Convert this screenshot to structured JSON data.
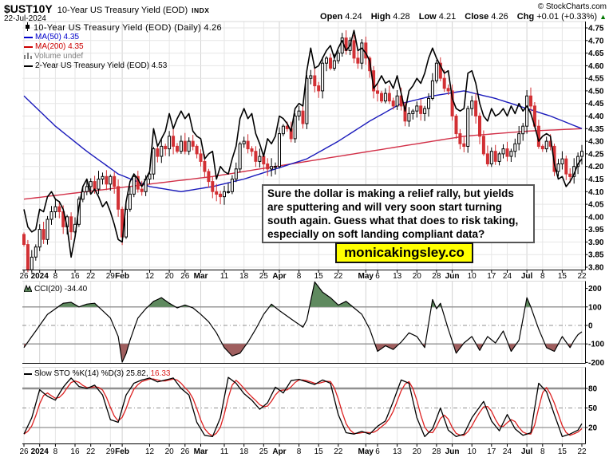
{
  "header": {
    "symbol": "$UST10Y",
    "name": "10-Year US Treasury Yield (EOD)",
    "exchange": "INDX",
    "date": "22-Jul-2024",
    "copyright": "© StockCharts.com",
    "quote": {
      "open_label": "Open",
      "open": "4.24",
      "high_label": "High",
      "high": "4.28",
      "low_label": "Low",
      "low": "4.21",
      "close_label": "Close",
      "close": "4.26",
      "chg_label": "Chg",
      "chg": "+0.01 (+0.33%)",
      "up_arrow": "▲"
    }
  },
  "main_panel": {
    "legend": [
      {
        "icon": "candlestick-icon",
        "label": "10-Year US Treasury Yield (EOD) (Daily) 4.26",
        "color": "#000000"
      },
      {
        "icon": "line-icon",
        "label": "MA(50) 4.35",
        "color": "#0000cc"
      },
      {
        "icon": "line-icon",
        "label": "MA(200) 4.35",
        "color": "#cc0000"
      },
      {
        "icon": "volume-icon",
        "label": "Volume undef",
        "color": "#808080"
      },
      {
        "icon": "line-icon",
        "label": "2-Year US Treasury Yield (EOD) 4.53",
        "color": "#000000"
      }
    ]
  },
  "cci_panel": {
    "legend": "CCI(20) -34.40"
  },
  "sto_panel": {
    "legend_prefix": "Slow STO %K(14) %D(3) 25.82,",
    "legend_value": "16.33"
  },
  "annotation": {
    "text": "Sure the dollar is making a relief rally, but yields are sputtering and will very soon start turning south again. Guess what that does to risk taking, especially on soft landing compliant data?"
  },
  "watermark": {
    "text": "monicakingsley.co",
    "bg": "#ffff00"
  },
  "colors": {
    "candle_down": "#d23034",
    "candle_up_fill": "#ffffff",
    "candle_up_stroke": "#000000",
    "ma50": "#1a1abb",
    "ma200": "#d23048",
    "overlay_line": "#000000",
    "cci_fill_pos": "#5f8a5f",
    "cci_fill_neg": "#a05f5f",
    "sto_k": "#000000",
    "sto_d": "#dd2222",
    "grid": "#e6e6e6",
    "grid_month": "#d2d2d2",
    "threshold": "#909090",
    "axis": "#000000",
    "chg_up": "#007700"
  },
  "x_axis": {
    "ticks": [
      {
        "label": "26",
        "idx": 0,
        "bold": false
      },
      {
        "label": "2024",
        "idx": 4,
        "bold": true
      },
      {
        "label": "8",
        "idx": 8,
        "bold": false
      },
      {
        "label": "16",
        "idx": 13,
        "bold": false
      },
      {
        "label": "22",
        "idx": 17,
        "bold": false
      },
      {
        "label": "29",
        "idx": 22,
        "bold": false
      },
      {
        "label": "Feb",
        "idx": 25,
        "bold": true
      },
      {
        "label": "12",
        "idx": 32,
        "bold": false
      },
      {
        "label": "20",
        "idx": 37,
        "bold": false
      },
      {
        "label": "26",
        "idx": 41,
        "bold": false
      },
      {
        "label": "Mar",
        "idx": 45,
        "bold": true
      },
      {
        "label": "11",
        "idx": 51,
        "bold": false
      },
      {
        "label": "18",
        "idx": 56,
        "bold": false
      },
      {
        "label": "25",
        "idx": 61,
        "bold": false
      },
      {
        "label": "Apr",
        "idx": 65,
        "bold": true
      },
      {
        "label": "8",
        "idx": 70,
        "bold": false
      },
      {
        "label": "15",
        "idx": 75,
        "bold": false
      },
      {
        "label": "22",
        "idx": 80,
        "bold": false
      },
      {
        "label": "May",
        "idx": 87,
        "bold": true
      },
      {
        "label": "6",
        "idx": 90,
        "bold": false
      },
      {
        "label": "13",
        "idx": 95,
        "bold": false
      },
      {
        "label": "20",
        "idx": 100,
        "bold": false
      },
      {
        "label": "28",
        "idx": 105,
        "bold": false
      },
      {
        "label": "Jun",
        "idx": 109,
        "bold": true
      },
      {
        "label": "10",
        "idx": 114,
        "bold": false
      },
      {
        "label": "17",
        "idx": 119,
        "bold": false
      },
      {
        "label": "24",
        "idx": 123,
        "bold": false
      },
      {
        "label": "Jul",
        "idx": 128,
        "bold": true
      },
      {
        "label": "8",
        "idx": 132,
        "bold": false
      },
      {
        "label": "15",
        "idx": 137,
        "bold": false
      },
      {
        "label": "22",
        "idx": 142,
        "bold": false
      }
    ]
  },
  "chart_data": [
    {
      "type": "candlestick",
      "title": "10-Year US Treasury Yield (EOD) (Daily)",
      "last": 4.26,
      "open": 4.24,
      "high": 4.28,
      "low": 4.21,
      "ylim": [
        3.8,
        4.75
      ],
      "y_tick_step": 0.05,
      "x_range": "26-Dec-2023 to 22-Jul-2024",
      "closes": [
        3.89,
        3.79,
        3.84,
        3.88,
        3.95,
        3.91,
        3.99,
        4.02,
        4.04,
        4.02,
        3.96,
        4.0,
        3.94,
        3.97,
        4.07,
        4.1,
        4.12,
        4.14,
        4.11,
        4.15,
        4.16,
        4.13,
        4.16,
        4.12,
        4.03,
        3.92,
        4.03,
        4.09,
        4.16,
        4.11,
        4.1,
        4.15,
        4.17,
        4.27,
        4.24,
        4.28,
        4.27,
        4.32,
        4.28,
        4.26,
        4.3,
        4.26,
        4.3,
        4.28,
        4.25,
        4.22,
        4.18,
        4.14,
        4.1,
        4.09,
        4.08,
        4.1,
        4.1,
        4.15,
        4.19,
        4.29,
        4.3,
        4.27,
        4.26,
        4.22,
        4.24,
        4.21,
        4.19,
        4.2,
        4.2,
        4.33,
        4.36,
        4.35,
        4.31,
        4.4,
        4.42,
        4.37,
        4.55,
        4.56,
        4.52,
        4.5,
        4.61,
        4.63,
        4.59,
        4.62,
        4.65,
        4.71,
        4.66,
        4.7,
        4.63,
        4.61,
        4.69,
        4.63,
        4.58,
        4.5,
        4.49,
        4.46,
        4.49,
        4.46,
        4.44,
        4.48,
        4.44,
        4.38,
        4.41,
        4.42,
        4.44,
        4.41,
        4.43,
        4.47,
        4.54,
        4.61,
        4.55,
        4.51,
        4.5,
        4.4,
        4.33,
        4.29,
        4.28,
        4.43,
        4.46,
        4.4,
        4.32,
        4.25,
        4.21,
        4.26,
        4.22,
        4.25,
        4.27,
        4.24,
        4.26,
        4.29,
        4.33,
        4.36,
        4.48,
        4.44,
        4.36,
        4.28,
        4.27,
        4.3,
        4.28,
        4.18,
        4.21,
        4.23,
        4.17,
        4.16,
        4.2,
        4.24,
        4.26
      ],
      "overlays": [
        {
          "name": "MA(50)",
          "last": 4.35,
          "anchors": [
            [
              0,
              4.48
            ],
            [
              8,
              4.36
            ],
            [
              16,
              4.26
            ],
            [
              24,
              4.17
            ],
            [
              32,
              4.12
            ],
            [
              40,
              4.1
            ],
            [
              48,
              4.12
            ],
            [
              56,
              4.15
            ],
            [
              64,
              4.19
            ],
            [
              72,
              4.23
            ],
            [
              80,
              4.3
            ],
            [
              88,
              4.38
            ],
            [
              96,
              4.45
            ],
            [
              104,
              4.48
            ],
            [
              112,
              4.5
            ],
            [
              120,
              4.47
            ],
            [
              128,
              4.43
            ],
            [
              134,
              4.4
            ],
            [
              142,
              4.35
            ]
          ]
        },
        {
          "name": "MA(200)",
          "last": 4.35,
          "anchors": [
            [
              0,
              4.07
            ],
            [
              16,
              4.1
            ],
            [
              32,
              4.13
            ],
            [
              48,
              4.16
            ],
            [
              64,
              4.2
            ],
            [
              80,
              4.24
            ],
            [
              96,
              4.28
            ],
            [
              112,
              4.32
            ],
            [
              128,
              4.34
            ],
            [
              142,
              4.35
            ]
          ]
        },
        {
          "name": "2-Year US Treasury Yield (EOD)",
          "last": 4.53,
          "own_scale": [
            4.1,
            5.05
          ],
          "values": [
            4.33,
            4.26,
            4.24,
            4.25,
            4.33,
            4.32,
            4.38,
            4.4,
            4.37,
            4.36,
            4.33,
            4.26,
            4.14,
            4.22,
            4.34,
            4.42,
            4.45,
            4.39,
            4.41,
            4.38,
            4.34,
            4.36,
            4.32,
            4.27,
            4.21,
            4.2,
            4.36,
            4.44,
            4.47,
            4.45,
            4.42,
            4.45,
            4.48,
            4.65,
            4.58,
            4.61,
            4.64,
            4.71,
            4.65,
            4.69,
            4.72,
            4.69,
            4.71,
            4.64,
            4.62,
            4.61,
            4.53,
            4.55,
            4.56,
            4.45,
            4.5,
            4.48,
            4.47,
            4.53,
            4.58,
            4.69,
            4.73,
            4.69,
            4.71,
            4.63,
            4.59,
            4.54,
            4.61,
            4.59,
            4.62,
            4.7,
            4.69,
            4.67,
            4.64,
            4.73,
            4.75,
            4.74,
            4.88,
            4.97,
            4.89,
            4.9,
            4.93,
            4.96,
            4.98,
            4.93,
            4.97,
            5.0,
            4.96,
            4.98,
            5.04,
            4.96,
            4.97,
            4.95,
            4.92,
            4.81,
            4.83,
            4.86,
            4.83,
            4.84,
            4.81,
            4.86,
            4.79,
            4.72,
            4.8,
            4.82,
            4.85,
            4.83,
            4.87,
            4.93,
            4.97,
            4.93,
            4.9,
            4.87,
            4.88,
            4.77,
            4.73,
            4.72,
            4.73,
            4.87,
            4.88,
            4.83,
            4.75,
            4.7,
            4.68,
            4.73,
            4.7,
            4.71,
            4.73,
            4.7,
            4.74,
            4.71,
            4.75,
            4.72,
            4.74,
            4.71,
            4.66,
            4.6,
            4.62,
            4.63,
            4.62,
            4.51,
            4.45,
            4.46,
            4.42,
            4.44,
            4.47,
            4.51,
            4.53
          ]
        }
      ]
    },
    {
      "type": "line",
      "name": "CCI(20)",
      "last": -34.4,
      "ylim": [
        -245,
        245
      ],
      "y_ticks": [
        200,
        100,
        0,
        -100,
        -200
      ],
      "thresholds": [
        100,
        -100
      ],
      "fill_above": 100,
      "fill_below": -100,
      "anchors": [
        [
          0,
          -120
        ],
        [
          2,
          -60
        ],
        [
          4,
          0
        ],
        [
          6,
          60
        ],
        [
          8,
          90
        ],
        [
          10,
          120
        ],
        [
          12,
          125
        ],
        [
          14,
          100
        ],
        [
          16,
          115
        ],
        [
          18,
          120
        ],
        [
          20,
          80
        ],
        [
          22,
          40
        ],
        [
          24,
          -60
        ],
        [
          25,
          -225
        ],
        [
          27,
          -80
        ],
        [
          29,
          40
        ],
        [
          31,
          90
        ],
        [
          33,
          130
        ],
        [
          35,
          150
        ],
        [
          37,
          120
        ],
        [
          39,
          95
        ],
        [
          41,
          110
        ],
        [
          43,
          95
        ],
        [
          45,
          60
        ],
        [
          47,
          20
        ],
        [
          49,
          -40
        ],
        [
          51,
          -120
        ],
        [
          53,
          -165
        ],
        [
          55,
          -150
        ],
        [
          57,
          -90
        ],
        [
          59,
          -20
        ],
        [
          61,
          60
        ],
        [
          63,
          115
        ],
        [
          65,
          80
        ],
        [
          67,
          50
        ],
        [
          69,
          20
        ],
        [
          71,
          -10
        ],
        [
          72,
          30
        ],
        [
          74,
          235
        ],
        [
          76,
          180
        ],
        [
          78,
          150
        ],
        [
          80,
          110
        ],
        [
          82,
          130
        ],
        [
          84,
          95
        ],
        [
          86,
          60
        ],
        [
          88,
          -20
        ],
        [
          90,
          -140
        ],
        [
          92,
          -110
        ],
        [
          94,
          -130
        ],
        [
          96,
          -90
        ],
        [
          98,
          -40
        ],
        [
          100,
          -60
        ],
        [
          102,
          -120
        ],
        [
          104,
          140
        ],
        [
          105,
          90
        ],
        [
          106,
          120
        ],
        [
          108,
          -20
        ],
        [
          110,
          -150
        ],
        [
          112,
          -95
        ],
        [
          114,
          -60
        ],
        [
          116,
          -135
        ],
        [
          118,
          -60
        ],
        [
          120,
          -95
        ],
        [
          122,
          -30
        ],
        [
          124,
          -140
        ],
        [
          126,
          -80
        ],
        [
          128,
          150
        ],
        [
          129,
          100
        ],
        [
          131,
          -20
        ],
        [
          133,
          -120
        ],
        [
          135,
          -140
        ],
        [
          137,
          -60
        ],
        [
          139,
          -120
        ],
        [
          140,
          -80
        ],
        [
          141,
          -50
        ],
        [
          142,
          -34.4
        ]
      ]
    },
    {
      "type": "line",
      "name": "Slow STO %K(14) %D(3)",
      "k_last": 25.82,
      "d_last": 16.33,
      "ylim": [
        0,
        100
      ],
      "y_ticks": [
        80,
        50,
        20
      ],
      "thresholds": [
        80,
        50,
        20
      ],
      "k_anchors": [
        [
          0,
          10
        ],
        [
          2,
          35
        ],
        [
          4,
          78
        ],
        [
          6,
          68
        ],
        [
          8,
          62
        ],
        [
          10,
          82
        ],
        [
          12,
          96
        ],
        [
          14,
          83
        ],
        [
          16,
          80
        ],
        [
          18,
          85
        ],
        [
          20,
          70
        ],
        [
          22,
          32
        ],
        [
          24,
          28
        ],
        [
          26,
          70
        ],
        [
          28,
          88
        ],
        [
          30,
          93
        ],
        [
          32,
          96
        ],
        [
          34,
          90
        ],
        [
          36,
          93
        ],
        [
          38,
          96
        ],
        [
          40,
          80
        ],
        [
          42,
          70
        ],
        [
          44,
          28
        ],
        [
          46,
          8
        ],
        [
          48,
          6
        ],
        [
          50,
          35
        ],
        [
          52,
          97
        ],
        [
          54,
          88
        ],
        [
          56,
          72
        ],
        [
          58,
          62
        ],
        [
          60,
          48
        ],
        [
          62,
          58
        ],
        [
          64,
          82
        ],
        [
          66,
          73
        ],
        [
          68,
          92
        ],
        [
          70,
          94
        ],
        [
          72,
          90
        ],
        [
          74,
          86
        ],
        [
          76,
          93
        ],
        [
          78,
          88
        ],
        [
          80,
          40
        ],
        [
          82,
          12
        ],
        [
          84,
          10
        ],
        [
          86,
          14
        ],
        [
          88,
          10
        ],
        [
          90,
          22
        ],
        [
          92,
          30
        ],
        [
          94,
          60
        ],
        [
          96,
          93
        ],
        [
          98,
          88
        ],
        [
          100,
          35
        ],
        [
          102,
          6
        ],
        [
          104,
          18
        ],
        [
          106,
          50
        ],
        [
          108,
          16
        ],
        [
          110,
          6
        ],
        [
          112,
          10
        ],
        [
          114,
          35
        ],
        [
          117,
          60
        ],
        [
          119,
          30
        ],
        [
          121,
          15
        ],
        [
          123,
          40
        ],
        [
          125,
          18
        ],
        [
          127,
          8
        ],
        [
          129,
          12
        ],
        [
          131,
          88
        ],
        [
          133,
          75
        ],
        [
          135,
          40
        ],
        [
          137,
          6
        ],
        [
          139,
          10
        ],
        [
          141,
          16
        ],
        [
          142,
          25.82
        ]
      ]
    }
  ]
}
